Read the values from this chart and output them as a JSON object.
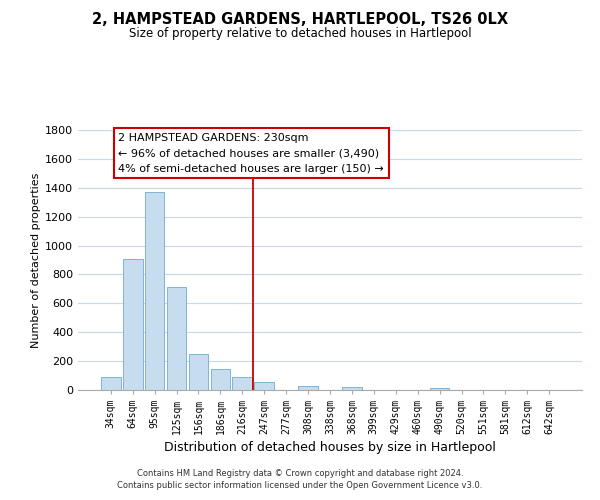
{
  "title": "2, HAMPSTEAD GARDENS, HARTLEPOOL, TS26 0LX",
  "subtitle": "Size of property relative to detached houses in Hartlepool",
  "xlabel": "Distribution of detached houses by size in Hartlepool",
  "ylabel": "Number of detached properties",
  "bar_labels": [
    "34sqm",
    "64sqm",
    "95sqm",
    "125sqm",
    "156sqm",
    "186sqm",
    "216sqm",
    "247sqm",
    "277sqm",
    "308sqm",
    "338sqm",
    "368sqm",
    "399sqm",
    "429sqm",
    "460sqm",
    "490sqm",
    "520sqm",
    "551sqm",
    "581sqm",
    "612sqm",
    "642sqm"
  ],
  "bar_values": [
    90,
    910,
    1370,
    710,
    250,
    145,
    90,
    55,
    0,
    25,
    0,
    20,
    0,
    0,
    0,
    15,
    0,
    0,
    0,
    0,
    0
  ],
  "bar_color": "#c6ddef",
  "bar_edge_color": "#7fb3d3",
  "ylim": [
    0,
    1800
  ],
  "yticks": [
    0,
    200,
    400,
    600,
    800,
    1000,
    1200,
    1400,
    1600,
    1800
  ],
  "vline_x": 6.5,
  "vline_color": "#cc0000",
  "annotation_title": "2 HAMPSTEAD GARDENS: 230sqm",
  "annotation_line1": "← 96% of detached houses are smaller (3,490)",
  "annotation_line2": "4% of semi-detached houses are larger (150) →",
  "annotation_box_color": "#ffffff",
  "annotation_box_edge": "#cc0000",
  "footnote1": "Contains HM Land Registry data © Crown copyright and database right 2024.",
  "footnote2": "Contains public sector information licensed under the Open Government Licence v3.0.",
  "background_color": "#ffffff",
  "grid_color": "#c8d8e8"
}
